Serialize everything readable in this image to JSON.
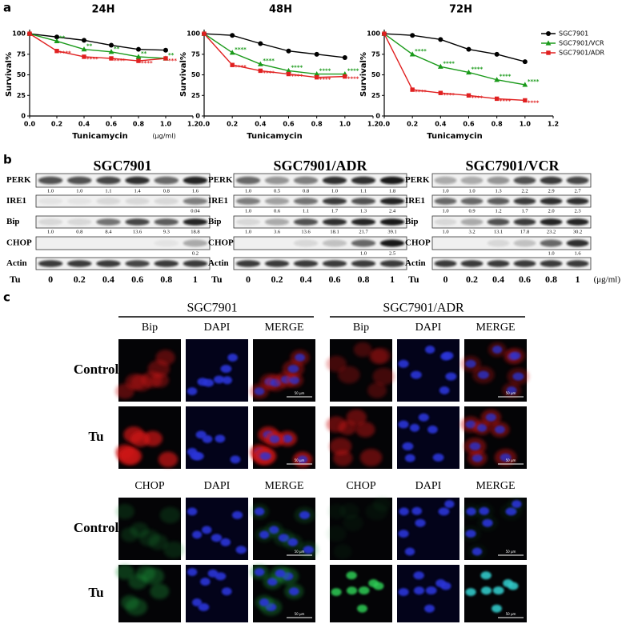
{
  "panel_labels": [
    "a",
    "b",
    "c"
  ],
  "chart_data": [
    {
      "type": "line",
      "title": "24H",
      "x_label": "Tunicamycin",
      "x_unit": "(μg/ml)",
      "y_label": "Survival%",
      "x": [
        0,
        0.2,
        0.4,
        0.6,
        0.8,
        1.0
      ],
      "xlim": [
        0,
        1.2
      ],
      "xticks": [
        {
          "value": 0,
          "label": "0.0"
        },
        {
          "value": 0.2,
          "label": "0.2"
        },
        {
          "value": 0.4,
          "label": "0.4"
        },
        {
          "value": 0.6,
          "label": "0.6"
        },
        {
          "value": 0.8,
          "label": "0.8"
        },
        {
          "value": 1.0,
          "label": "1.0"
        },
        {
          "value": 1.2,
          "label": "1.2"
        }
      ],
      "ylim": [
        0,
        105
      ],
      "yticks": [
        0,
        25,
        50,
        75,
        100
      ],
      "series": [
        {
          "color": "#000000",
          "marker": "circle",
          "values": [
            100,
            96,
            92,
            86,
            81,
            80
          ]
        },
        {
          "color": "#1a9a1a",
          "marker": "triangle",
          "values": [
            100,
            91,
            81,
            78,
            72,
            70
          ],
          "annotations": [
            null,
            "**",
            "**",
            "**",
            "**",
            "**"
          ]
        },
        {
          "color": "#e02020",
          "marker": "square",
          "values": [
            100,
            79,
            72,
            70,
            67,
            70
          ],
          "annotations": [
            null,
            "****",
            "****",
            "****",
            "****",
            "***"
          ]
        }
      ]
    },
    {
      "type": "line",
      "title": "48H",
      "x_label": "Tunicamycin",
      "y_label": "Survival%",
      "x": [
        0,
        0.2,
        0.4,
        0.6,
        0.8,
        1.0
      ],
      "xlim": [
        0,
        1.2
      ],
      "xticks": [
        {
          "value": 0,
          "label": "0.0"
        },
        {
          "value": 0.2,
          "label": "0.2"
        },
        {
          "value": 0.4,
          "label": "0.4"
        },
        {
          "value": 0.6,
          "label": "0.6"
        },
        {
          "value": 0.8,
          "label": "0.8"
        },
        {
          "value": 1.0,
          "label": "1.0"
        },
        {
          "value": 1.2,
          "label": "1.2"
        }
      ],
      "ylim": [
        0,
        105
      ],
      "yticks": [
        0,
        25,
        50,
        75,
        100
      ],
      "series": [
        {
          "color": "#000000",
          "marker": "circle",
          "values": [
            100,
            98,
            88,
            79,
            75,
            71
          ]
        },
        {
          "color": "#1a9a1a",
          "marker": "triangle",
          "values": [
            100,
            77,
            63,
            55,
            51,
            51
          ],
          "annotations": [
            null,
            "****",
            "****",
            "****",
            "****",
            "****"
          ]
        },
        {
          "color": "#e02020",
          "marker": "square",
          "values": [
            100,
            62,
            55,
            51,
            47,
            48
          ],
          "annotations": [
            null,
            "****",
            "****",
            "****",
            "****",
            "****"
          ]
        }
      ]
    },
    {
      "type": "line",
      "title": "72H",
      "x_label": "Tunicamycin",
      "y_label": "Survival%",
      "x": [
        0,
        0.2,
        0.4,
        0.6,
        0.8,
        1.0
      ],
      "xlim": [
        0,
        1.2
      ],
      "xticks": [
        {
          "value": 0,
          "label": "0.0"
        },
        {
          "value": 0.2,
          "label": "0.2"
        },
        {
          "value": 0.4,
          "label": "0.4"
        },
        {
          "value": 0.6,
          "label": "0.6"
        },
        {
          "value": 0.8,
          "label": "0.8"
        },
        {
          "value": 1.0,
          "label": "1.0"
        },
        {
          "value": 1.2,
          "label": "1.2"
        }
      ],
      "ylim": [
        0,
        105
      ],
      "yticks": [
        0,
        25,
        50,
        75,
        100
      ],
      "legend": "outside-right",
      "series": [
        {
          "name": "SGC7901",
          "color": "#000000",
          "marker": "circle",
          "values": [
            100,
            98,
            93,
            81,
            75,
            66
          ]
        },
        {
          "name": "SGC7901/VCR",
          "color": "#1a9a1a",
          "marker": "triangle",
          "values": [
            100,
            75,
            60,
            53,
            44,
            38
          ],
          "annotations": [
            null,
            "****",
            "****",
            "****",
            "****",
            "****"
          ]
        },
        {
          "name": "SGC7901/ADR",
          "color": "#e02020",
          "marker": "square",
          "values": [
            100,
            32,
            28,
            25,
            21,
            19
          ],
          "annotations": [
            null,
            "****",
            "****",
            "****",
            "****",
            "****"
          ]
        }
      ]
    }
  ],
  "blots": {
    "row_labels": [
      "PERK",
      "IRE1",
      "Bip",
      "CHOP",
      "Actin"
    ],
    "dose_label": "Tu",
    "doses": [
      "0",
      "0.2",
      "0.4",
      "0.6",
      "0.8",
      "1"
    ],
    "dose_unit": "(μg/ml)",
    "panels": [
      {
        "title": "SGC7901",
        "quant": [
          [
            "1.0",
            "1.0",
            "1.1",
            "1.4",
            "0.8",
            "1.6"
          ],
          [
            null,
            null,
            null,
            null,
            null,
            "0.04"
          ],
          [
            "1.0",
            "0.8",
            "8.4",
            "13.6",
            "9.3",
            "18.8"
          ],
          [
            null,
            null,
            null,
            null,
            null,
            "0.2"
          ]
        ]
      },
      {
        "title": "SGC7901/ADR",
        "quant": [
          [
            "1.0",
            "0.5",
            "0.8",
            "1.0",
            "1.1",
            "1.8"
          ],
          [
            "1.0",
            "0.6",
            "1.1",
            "1.7",
            "1.3",
            "2.4"
          ],
          [
            "1.0",
            "3.6",
            "13.6",
            "18.1",
            "21.7",
            "39.1"
          ],
          [
            null,
            null,
            null,
            null,
            "1.0",
            "2.5"
          ]
        ]
      },
      {
        "title": "SGC7901/VCR",
        "quant": [
          [
            "1.0",
            "1.0",
            "1.3",
            "2.2",
            "2.9",
            "2.7"
          ],
          [
            "1.0",
            "0.9",
            "1.2",
            "1.7",
            "2.0",
            "2.3"
          ],
          [
            "1.0",
            "3.2",
            "13.1",
            "17.8",
            "23.2",
            "30.2"
          ],
          [
            null,
            null,
            null,
            null,
            "1.0",
            "1.6"
          ]
        ]
      }
    ]
  },
  "microscopy": {
    "groups": [
      "SGC7901",
      "SGC7901/ADR"
    ],
    "blocks": [
      {
        "channels": [
          "Bip",
          "DAPI",
          "MERGE"
        ]
      },
      {
        "channels": [
          "CHOP",
          "DAPI",
          "MERGE"
        ]
      }
    ],
    "conditions": [
      "Control",
      "Tu"
    ],
    "scale_bar": "50 μm"
  }
}
